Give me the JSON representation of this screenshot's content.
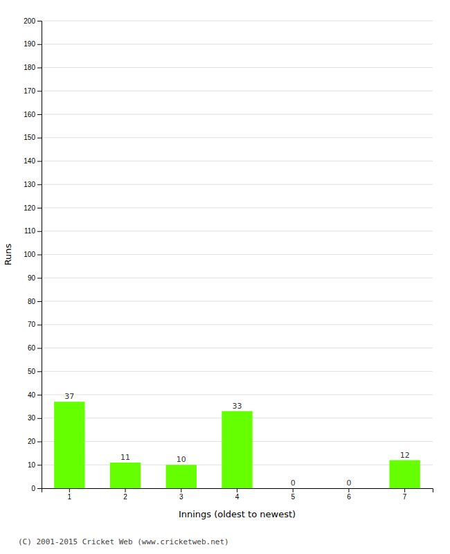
{
  "chart_data": {
    "type": "bar",
    "categories": [
      "1",
      "2",
      "3",
      "4",
      "5",
      "6",
      "7"
    ],
    "values": [
      37,
      11,
      10,
      33,
      0,
      0,
      12
    ],
    "color": "#66ff00",
    "xlabel": "Innings (oldest to newest)",
    "ylabel": "Runs",
    "ylim": [
      0,
      200
    ],
    "yticks": [
      0,
      10,
      20,
      30,
      40,
      50,
      60,
      70,
      80,
      90,
      100,
      110,
      120,
      130,
      140,
      150,
      160,
      170,
      180,
      190,
      200
    ],
    "grid": true,
    "data_labels": true,
    "annotations": [
      "(C) 2001-2015 Cricket Web (www.cricketweb.net)"
    ]
  }
}
